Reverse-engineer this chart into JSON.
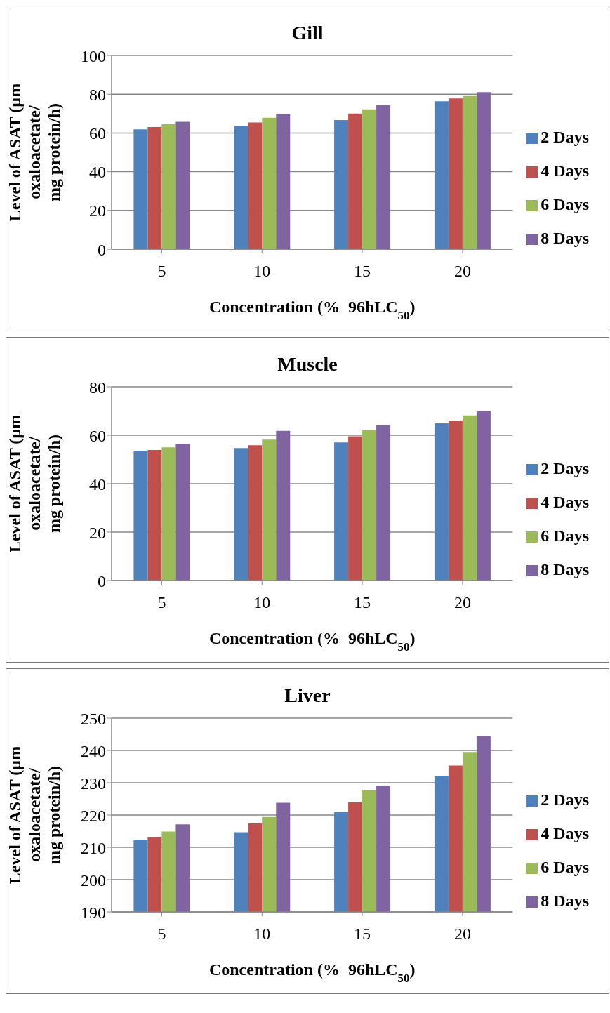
{
  "chart_data": [
    {
      "type": "bar",
      "title": "Gill",
      "xlabel": "Concentration (%  96hLC$_{50}$)",
      "ylabel": "Level of ASAT (µm oxaloacetate/ mg protein/h)",
      "categories": [
        "5",
        "10",
        "15",
        "20"
      ],
      "series": [
        {
          "name": "2 Days",
          "color": "#4f81bd",
          "values": [
            61.9,
            63.4,
            66.7,
            76.4
          ]
        },
        {
          "name": "4 Days",
          "color": "#c0504d",
          "values": [
            63.0,
            65.4,
            70.0,
            77.8
          ]
        },
        {
          "name": "6 Days",
          "color": "#9bbb59",
          "values": [
            64.5,
            67.8,
            72.2,
            79.1
          ]
        },
        {
          "name": "8 Days",
          "color": "#8064a2",
          "values": [
            65.8,
            69.8,
            74.4,
            81.1
          ]
        }
      ],
      "ylim": [
        0,
        100
      ],
      "yticks": [
        0,
        20,
        40,
        60,
        80,
        100
      ],
      "grid": "y",
      "legend": "right"
    },
    {
      "type": "bar",
      "title": "Muscle",
      "xlabel": "Concentration (%  96hLC$_{50}$)",
      "ylabel": "Level of ASAT (µm oxaloacetate/ mg protein/h)",
      "categories": [
        "5",
        "10",
        "15",
        "20"
      ],
      "series": [
        {
          "name": "2 Days",
          "color": "#4f81bd",
          "values": [
            53.6,
            54.7,
            57.0,
            64.9
          ]
        },
        {
          "name": "4 Days",
          "color": "#c0504d",
          "values": [
            53.9,
            55.9,
            59.6,
            66.1
          ]
        },
        {
          "name": "6 Days",
          "color": "#9bbb59",
          "values": [
            55.0,
            58.2,
            62.1,
            68.2
          ]
        },
        {
          "name": "8 Days",
          "color": "#8064a2",
          "values": [
            56.5,
            61.8,
            64.2,
            70.1
          ]
        }
      ],
      "ylim": [
        0,
        80
      ],
      "yticks": [
        0,
        20,
        40,
        60,
        80
      ],
      "grid": "y",
      "legend": "right"
    },
    {
      "type": "bar",
      "title": "Liver",
      "xlabel": "Concentration (%  96hLC$_{50}$)",
      "ylabel": "Level of ASAT (µm oxaloacetate/ mg protein/h)",
      "categories": [
        "5",
        "10",
        "15",
        "20"
      ],
      "series": [
        {
          "name": "2 Days",
          "color": "#4f81bd",
          "values": [
            212.4,
            214.7,
            220.9,
            232.1
          ]
        },
        {
          "name": "4 Days",
          "color": "#c0504d",
          "values": [
            213.1,
            217.4,
            223.9,
            235.3
          ]
        },
        {
          "name": "6 Days",
          "color": "#9bbb59",
          "values": [
            214.9,
            219.4,
            227.6,
            239.5
          ]
        },
        {
          "name": "8 Days",
          "color": "#8064a2",
          "values": [
            217.1,
            223.8,
            229.1,
            244.4
          ]
        }
      ],
      "ylim": [
        190,
        250
      ],
      "yticks": [
        190,
        200,
        210,
        220,
        230,
        240,
        250
      ],
      "grid": "y",
      "legend": "right"
    }
  ]
}
